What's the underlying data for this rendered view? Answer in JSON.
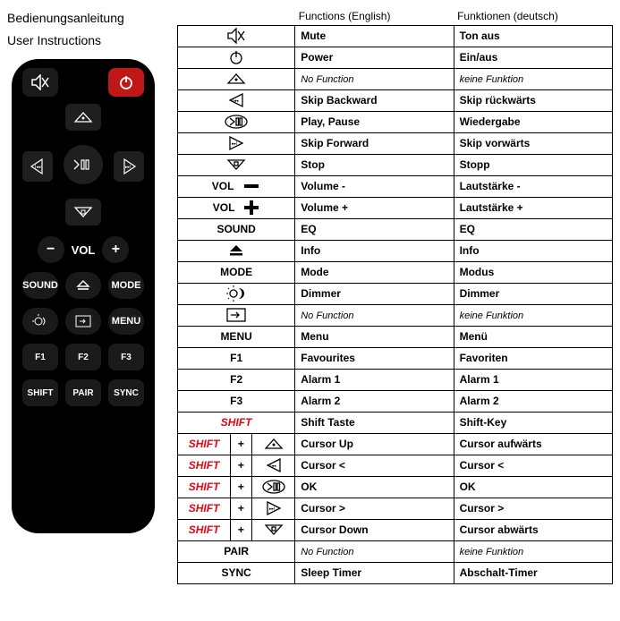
{
  "titles": {
    "de": "Bedienungsanleitung",
    "en": "User Instructions"
  },
  "headers": {
    "en": "Functions (English)",
    "de": "Funktionen (deutsch)"
  },
  "remote": {
    "vol": "VOL",
    "sound": "SOUND",
    "mode": "MODE",
    "menu": "MENU",
    "f1": "F1",
    "f2": "F2",
    "f3": "F3",
    "shift": "SHIFT",
    "pair": "PAIR",
    "sync": "SYNC"
  },
  "rows": [
    {
      "icon": "mute",
      "en": "Mute",
      "de": "Ton aus"
    },
    {
      "icon": "power",
      "en": "Power",
      "de": "Ein/aus"
    },
    {
      "icon": "tri-up",
      "en": "No Function",
      "de": "keine Funktion",
      "nf": true
    },
    {
      "icon": "skip-back",
      "en": "Skip Backward",
      "de": "Skip rückwärts"
    },
    {
      "icon": "play-pause",
      "en": "Play, Pause",
      "de": "Wiedergabe"
    },
    {
      "icon": "skip-fwd",
      "en": "Skip Forward",
      "de": "Skip vorwärts"
    },
    {
      "icon": "tri-down",
      "en": "Stop",
      "de": "Stopp"
    },
    {
      "label": "VOL",
      "extra": "minus",
      "en": "Volume -",
      "de": "Lautstärke -"
    },
    {
      "label": "VOL",
      "extra": "plus",
      "en": "Volume +",
      "de": "Lautstärke +"
    },
    {
      "label": "SOUND",
      "en": "EQ",
      "de": "EQ"
    },
    {
      "icon": "eject",
      "en": "Info",
      "de": "Info"
    },
    {
      "label": "MODE",
      "en": "Mode",
      "de": "Modus"
    },
    {
      "icon": "dimmer",
      "en": "Dimmer",
      "de": "Dimmer"
    },
    {
      "icon": "input",
      "en": "No Function",
      "de": "keine Funktion",
      "nf": true
    },
    {
      "label": "MENU",
      "en": "Menu",
      "de": "Menü"
    },
    {
      "label": "F1",
      "en": "Favourites",
      "de": "Favoriten"
    },
    {
      "label": "F2",
      "en": "Alarm 1",
      "de": "Alarm 1"
    },
    {
      "label": "F3",
      "en": "Alarm 2",
      "de": "Alarm 2"
    },
    {
      "shift": true,
      "en": "Shift Taste",
      "de": "Shift-Key"
    },
    {
      "shift": true,
      "combo": "tri-up",
      "en": "Cursor Up",
      "de": "Cursor aufwärts"
    },
    {
      "shift": true,
      "combo": "skip-back",
      "en": "Cursor <",
      "de": "Cursor <"
    },
    {
      "shift": true,
      "combo": "play-pause",
      "en": "OK",
      "de": "OK"
    },
    {
      "shift": true,
      "combo": "skip-fwd",
      "en": "Cursor >",
      "de": "Cursor >"
    },
    {
      "shift": true,
      "combo": "tri-down",
      "en": "Cursor Down",
      "de": "Cursor abwärts"
    },
    {
      "label": "PAIR",
      "en": "No Function",
      "de": "keine Funktion",
      "nf": true
    },
    {
      "label": "SYNC",
      "en": "Sleep Timer",
      "de": "Abschalt-Timer"
    }
  ],
  "shift_label": "SHIFT",
  "colors": {
    "shift": "#e30613",
    "border": "#000000"
  }
}
